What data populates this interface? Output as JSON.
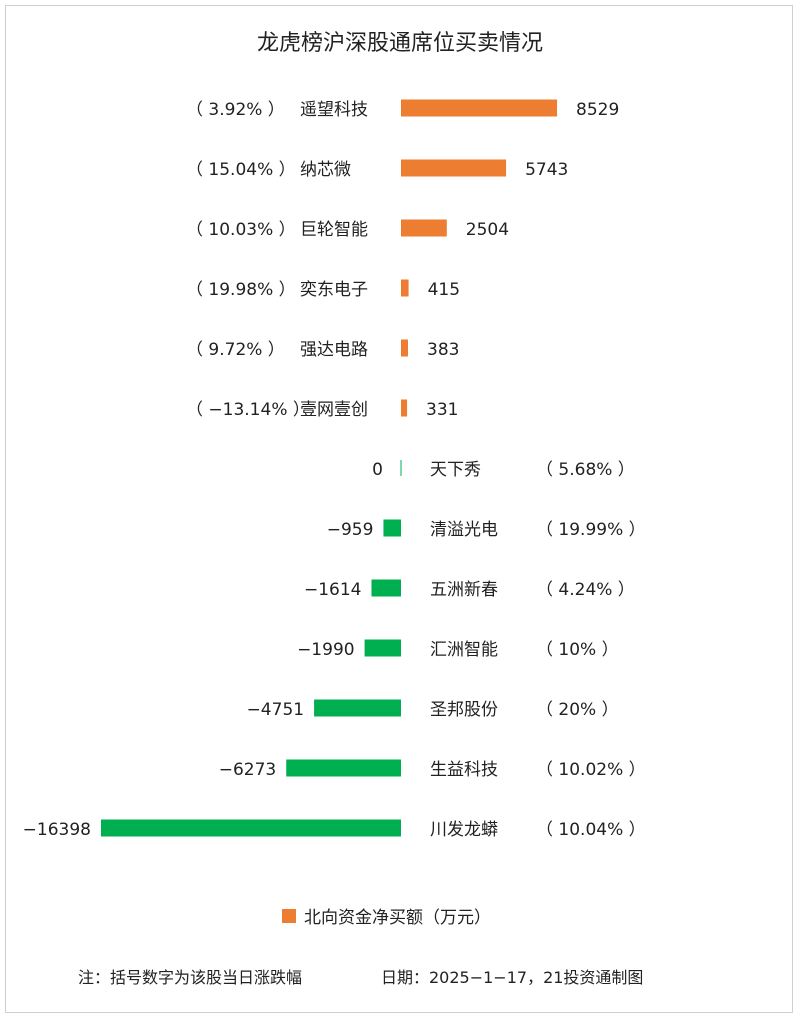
{
  "chart_data": {
    "type": "bar",
    "orientation": "horizontal",
    "title": "龙虎榜沪深股通席位买卖情况",
    "series": [
      {
        "name": "北向资金净买额（万元）",
        "color": "#ED7D31"
      }
    ],
    "negative_color": "#00B050",
    "categories": [
      "遥望科技",
      "纳芯微",
      "巨轮智能",
      "奕东电子",
      "强达电路",
      "壹网壹创",
      "天下秀",
      "清溢光电",
      "五洲新春",
      "汇洲智能",
      "圣邦股份",
      "生益科技",
      "川发龙蟒"
    ],
    "values": [
      8529,
      5743,
      2504,
      415,
      383,
      331,
      0,
      -959,
      -1614,
      -1990,
      -4751,
      -6273,
      -16398
    ],
    "value_labels": [
      "8529",
      "5743",
      "2504",
      "415",
      "383",
      "331",
      "0",
      "−959",
      "−1614",
      "−1990",
      "−4751",
      "−6273",
      "−16398"
    ],
    "change_labels": [
      "（ 3.92% ）",
      "（ 15.04% ）",
      "（ 10.03% ）",
      "（ 19.98% ）",
      "（ 9.72% ）",
      "（ −13.14% ）",
      "（ 5.68% ）",
      "（ 19.99% ）",
      "（ 4.24% ）",
      "（ 10% ）",
      "（ 20% ）",
      "（ 10.02% ）",
      "（ 10.04% ）"
    ],
    "legend_position": "bottom",
    "grid": false
  },
  "footer": {
    "note": "注：括号数字为该股当日涨跌幅",
    "source": "日期：2025−1−17，21投资通制图"
  }
}
